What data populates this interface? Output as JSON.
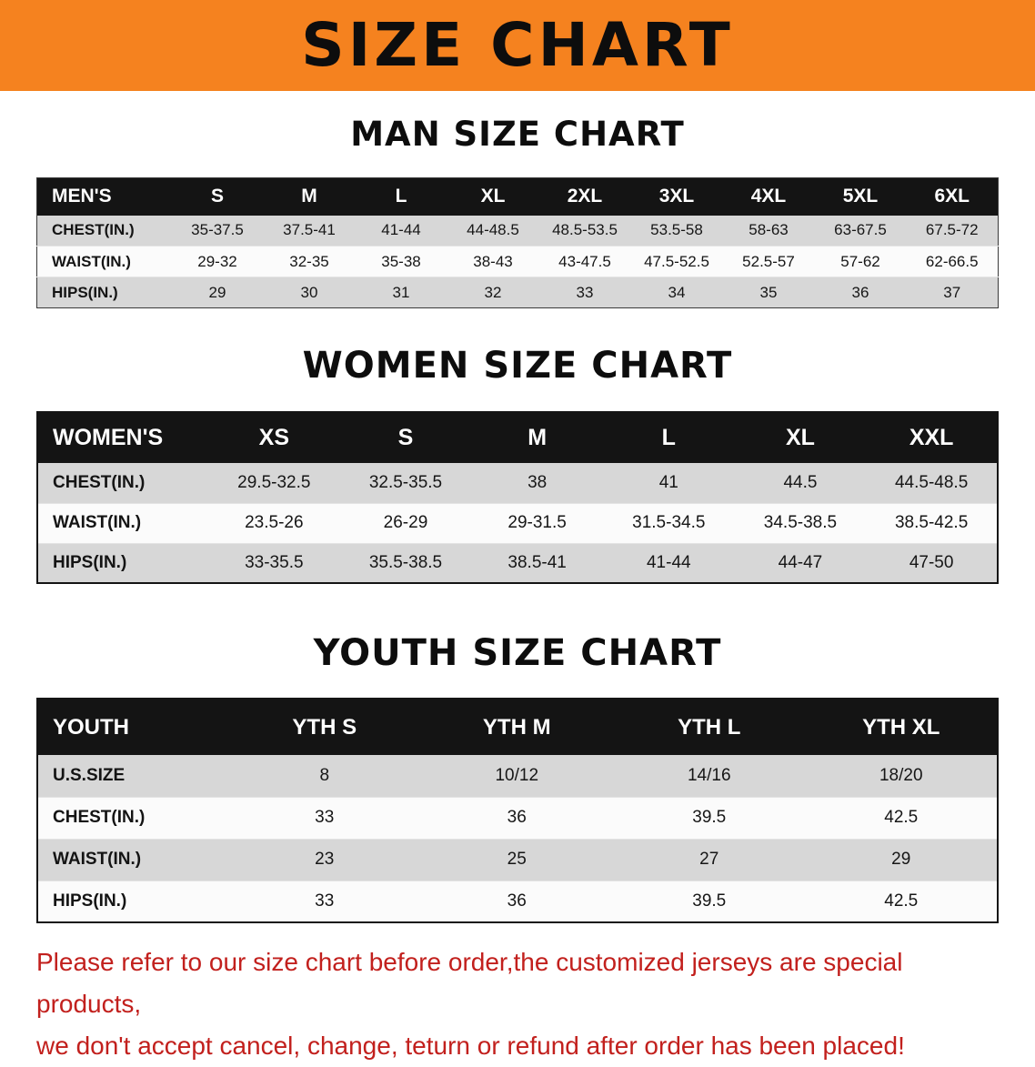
{
  "banner": {
    "title": "SIZE CHART"
  },
  "sections": {
    "men": {
      "heading": "MAN SIZE CHART"
    },
    "women": {
      "heading": "WOMEN SIZE CHART"
    },
    "youth": {
      "heading": "YOUTH SIZE CHART"
    }
  },
  "tables": {
    "men": {
      "header": [
        "MEN'S",
        "S",
        "M",
        "L",
        "XL",
        "2XL",
        "3XL",
        "4XL",
        "5XL",
        "6XL"
      ],
      "rows": [
        {
          "label": "CHEST(IN.)",
          "values": [
            "35-37.5",
            "37.5-41",
            "41-44",
            "44-48.5",
            "48.5-53.5",
            "53.5-58",
            "58-63",
            "63-67.5",
            "67.5-72"
          ]
        },
        {
          "label": "WAIST(IN.)",
          "values": [
            "29-32",
            "32-35",
            "35-38",
            "38-43",
            "43-47.5",
            "47.5-52.5",
            "52.5-57",
            "57-62",
            "62-66.5"
          ]
        },
        {
          "label": "HIPS(IN.)",
          "values": [
            "29",
            "30",
            "31",
            "32",
            "33",
            "34",
            "35",
            "36",
            "37"
          ]
        }
      ]
    },
    "women": {
      "header": [
        "WOMEN'S",
        "XS",
        "S",
        "M",
        "L",
        "XL",
        "XXL"
      ],
      "rows": [
        {
          "label": "CHEST(IN.)",
          "values": [
            "29.5-32.5",
            "32.5-35.5",
            "38",
            "41",
            "44.5",
            "44.5-48.5"
          ]
        },
        {
          "label": "WAIST(IN.)",
          "values": [
            "23.5-26",
            "26-29",
            "29-31.5",
            "31.5-34.5",
            "34.5-38.5",
            "38.5-42.5"
          ]
        },
        {
          "label": "HIPS(IN.)",
          "values": [
            "33-35.5",
            "35.5-38.5",
            "38.5-41",
            "41-44",
            "44-47",
            "47-50"
          ]
        }
      ]
    },
    "youth": {
      "header": [
        "YOUTH",
        "YTH S",
        "YTH M",
        "YTH L",
        "YTH XL"
      ],
      "rows": [
        {
          "label": "U.S.SIZE",
          "values": [
            "8",
            "10/12",
            "14/16",
            "18/20"
          ]
        },
        {
          "label": "CHEST(IN.)",
          "values": [
            "33",
            "36",
            "39.5",
            "42.5"
          ]
        },
        {
          "label": "WAIST(IN.)",
          "values": [
            "23",
            "25",
            "27",
            "29"
          ]
        },
        {
          "label": "HIPS(IN.)",
          "values": [
            "33",
            "36",
            "39.5",
            "42.5"
          ]
        }
      ]
    }
  },
  "disclaimer": {
    "lines": [
      "Please refer to our size chart before order,the customized jerseys are special products,",
      "we don't accept cancel, change, teturn or refund after order has been placed!"
    ]
  },
  "colors": {
    "banner_bg": "#f5821f",
    "table_header_bg": "#141414",
    "stripe_row": "#d7d7d7",
    "disclaimer_text": "#c2201d"
  }
}
